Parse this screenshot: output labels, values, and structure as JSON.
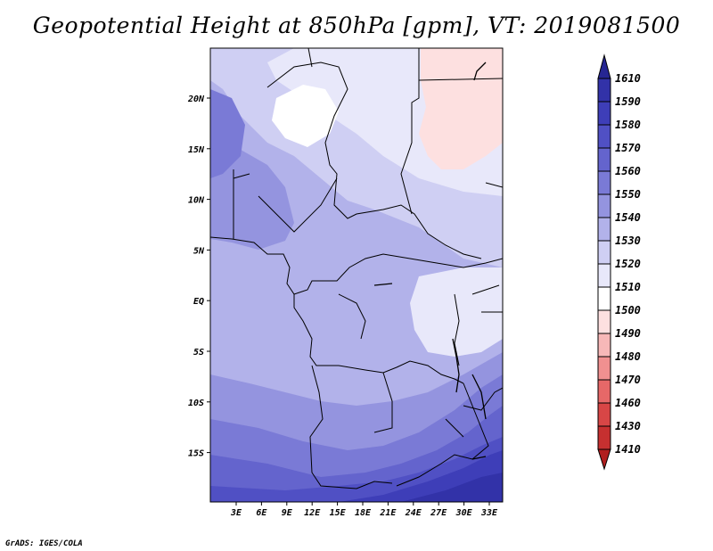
{
  "title": "Geopotential Height at 850hPa [gpm], VT: 2019081500",
  "credit": "GrADS: IGES/COLA",
  "map": {
    "lat_labels": [
      "20N",
      "15N",
      "10N",
      "5N",
      "EQ",
      "5S",
      "10S",
      "15S"
    ],
    "lon_labels": [
      "3E",
      "6E",
      "9E",
      "12E",
      "15E",
      "18E",
      "21E",
      "24E",
      "27E",
      "30E",
      "33E"
    ]
  },
  "colorbar": {
    "labels": [
      "1610",
      "1590",
      "1580",
      "1570",
      "1560",
      "1550",
      "1540",
      "1530",
      "1520",
      "1510",
      "1500",
      "1490",
      "1480",
      "1470",
      "1460",
      "1430",
      "1410"
    ],
    "colors": [
      "#262693",
      "#3232a8",
      "#3e3eb8",
      "#5050c4",
      "#6464cd",
      "#7a7ad6",
      "#9494df",
      "#b2b2ea",
      "#cfcff3",
      "#e8e8fa",
      "#ffffff",
      "#fde0e0",
      "#f7b8b8",
      "#f09090",
      "#e66868",
      "#d84646",
      "#c63030",
      "#b01e1e"
    ]
  }
}
